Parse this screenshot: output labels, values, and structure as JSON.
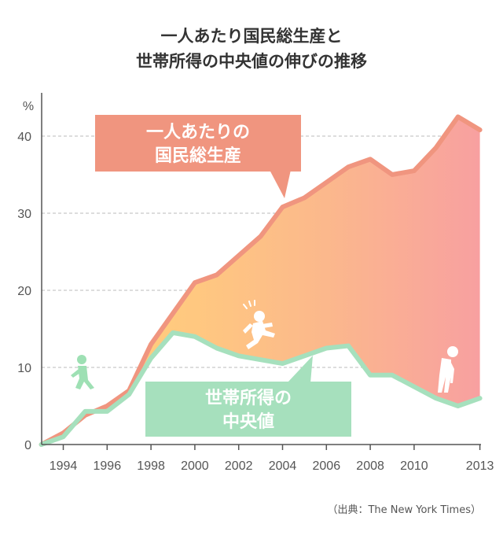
{
  "title": {
    "line1": "一人あたり国民総生産と",
    "line2": "世帯所得の中央値の伸びの推移"
  },
  "source": "（出典：The New York Times）",
  "chart_data": {
    "type": "area",
    "title": "一人あたり国民総生産と 世帯所得の中央値の伸びの推移",
    "ylabel": "%",
    "ylim": [
      0,
      45
    ],
    "yticks": [
      0,
      10,
      20,
      30,
      40
    ],
    "xticks": [
      "1994",
      "1996",
      "1998",
      "2000",
      "2002",
      "2004",
      "2006",
      "2008",
      "2010",
      "2013"
    ],
    "grid": true,
    "x": [
      1993,
      1994,
      1995,
      1996,
      1997,
      1998,
      1999,
      2000,
      2001,
      2002,
      2003,
      2004,
      2005,
      2006,
      2007,
      2008,
      2009,
      2010,
      2011,
      2012,
      2013
    ],
    "series": [
      {
        "name": "一人あたりの国民総生産",
        "label_lines": [
          "一人あたりの",
          "国民総生産"
        ],
        "color": "#f0957f",
        "values": [
          0,
          1.5,
          3.8,
          5.0,
          7.0,
          13.0,
          17.0,
          21.0,
          22.0,
          24.5,
          27.0,
          30.8,
          32.0,
          34.0,
          36.0,
          37.0,
          35.0,
          35.5,
          38.5,
          42.5,
          40.8
        ]
      },
      {
        "name": "世帯所得の中央値",
        "label_lines": [
          "世帯所得の",
          "中央値"
        ],
        "color": "#a6e0bd",
        "values": [
          0,
          1.0,
          4.3,
          4.3,
          6.5,
          11.2,
          14.5,
          14.0,
          12.5,
          11.5,
          11.0,
          10.5,
          11.5,
          12.5,
          12.8,
          9.0,
          9.0,
          7.5,
          6.0,
          5.0,
          6.0
        ]
      }
    ]
  }
}
